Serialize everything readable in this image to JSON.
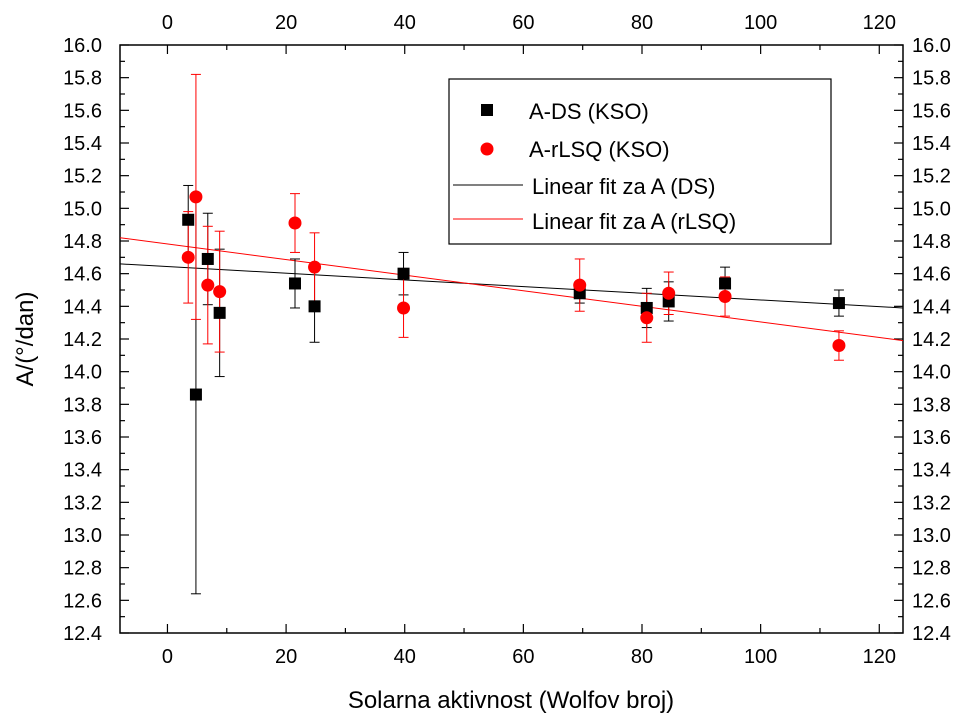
{
  "chart_data": {
    "type": "scatter",
    "xlabel": "Solarna aktivnost (Wolfov broj)",
    "ylabel": "A/(°/dan)",
    "xlim": [
      -8,
      124
    ],
    "ylim": [
      12.4,
      16.0
    ],
    "x_ticks": [
      0,
      20,
      40,
      60,
      80,
      100,
      120
    ],
    "x_tick_labels": [
      "0",
      "20",
      "40",
      "60",
      "80",
      "100",
      "120"
    ],
    "y_ticks": [
      12.4,
      12.6,
      12.8,
      13.0,
      13.2,
      13.4,
      13.6,
      13.8,
      14.0,
      14.2,
      14.4,
      14.6,
      14.8,
      15.0,
      15.2,
      15.4,
      15.6,
      15.8,
      16.0
    ],
    "y_tick_labels": [
      "12.4",
      "12.6",
      "12.8",
      "13.0",
      "13.2",
      "13.4",
      "13.6",
      "13.8",
      "14.0",
      "14.2",
      "14.4",
      "14.6",
      "14.8",
      "15.0",
      "15.2",
      "15.4",
      "15.6",
      "15.8",
      "16.0"
    ],
    "grid": false,
    "mirror_axes": true,
    "legend_position": "top-right",
    "series": [
      {
        "name": "A-DS (KSO)",
        "marker": "square",
        "color": "#000000",
        "points": [
          {
            "x": 3.5,
            "y": 14.93,
            "err": 0.21
          },
          {
            "x": 4.8,
            "y": 13.86,
            "err": 1.22
          },
          {
            "x": 6.8,
            "y": 14.69,
            "err": 0.28
          },
          {
            "x": 8.8,
            "y": 14.36,
            "err": 0.39
          },
          {
            "x": 21.5,
            "y": 14.54,
            "err": 0.15
          },
          {
            "x": 24.8,
            "y": 14.4,
            "err": 0.22
          },
          {
            "x": 39.8,
            "y": 14.6,
            "err": 0.13
          },
          {
            "x": 69.5,
            "y": 14.48,
            "err": 0.06
          },
          {
            "x": 80.8,
            "y": 14.39,
            "err": 0.12
          },
          {
            "x": 84.5,
            "y": 14.43,
            "err": 0.12
          },
          {
            "x": 94.0,
            "y": 14.54,
            "err": 0.1
          },
          {
            "x": 113.2,
            "y": 14.42,
            "err": 0.08
          }
        ]
      },
      {
        "name": "A-rLSQ (KSO)",
        "marker": "circle",
        "color": "#ff0000",
        "points": [
          {
            "x": 3.5,
            "y": 14.7,
            "err": 0.28
          },
          {
            "x": 4.8,
            "y": 15.07,
            "err": 0.75
          },
          {
            "x": 6.8,
            "y": 14.53,
            "err": 0.36
          },
          {
            "x": 8.8,
            "y": 14.49,
            "err": 0.37
          },
          {
            "x": 21.5,
            "y": 14.91,
            "err": 0.18
          },
          {
            "x": 24.8,
            "y": 14.64,
            "err": 0.21
          },
          {
            "x": 39.8,
            "y": 14.39,
            "err": 0.18
          },
          {
            "x": 69.5,
            "y": 14.53,
            "err": 0.16
          },
          {
            "x": 80.8,
            "y": 14.33,
            "err": 0.15
          },
          {
            "x": 84.5,
            "y": 14.48,
            "err": 0.13
          },
          {
            "x": 94.0,
            "y": 14.46,
            "err": 0.12
          },
          {
            "x": 113.2,
            "y": 14.16,
            "err": 0.09
          }
        ]
      }
    ],
    "fits": [
      {
        "name": "Linear fit za A (DS)",
        "color": "#000000",
        "x": [
          -8,
          124
        ],
        "y": [
          14.66,
          14.39
        ]
      },
      {
        "name": "Linear fit za A (rLSQ)",
        "color": "#ff0000",
        "x": [
          -8,
          124
        ],
        "y": [
          14.82,
          14.19
        ]
      }
    ]
  }
}
